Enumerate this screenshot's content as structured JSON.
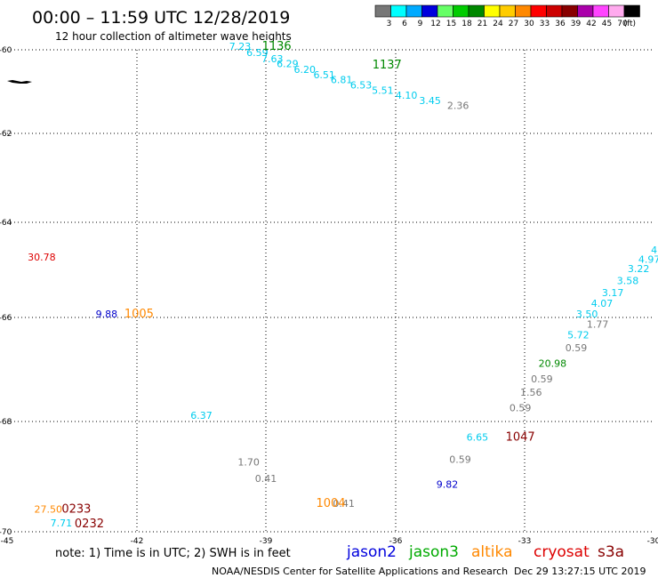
{
  "header": {
    "title": "00:00 – 11:59 UTC 12/28/2019",
    "subtitle": "12 hour collection of altimeter wave heights"
  },
  "legend": {
    "unit": "(ft)",
    "bins": [
      {
        "label": "3",
        "color": "#777777"
      },
      {
        "label": "6",
        "color": "#00ffff"
      },
      {
        "label": "9",
        "color": "#00aaff"
      },
      {
        "label": "12",
        "color": "#0000dd"
      },
      {
        "label": "15",
        "color": "#66ff66"
      },
      {
        "label": "18",
        "color": "#00cc00"
      },
      {
        "label": "21",
        "color": "#008800"
      },
      {
        "label": "24",
        "color": "#ffff00"
      },
      {
        "label": "27",
        "color": "#ffcc00"
      },
      {
        "label": "30",
        "color": "#ff8800"
      },
      {
        "label": "33",
        "color": "#ff0000"
      },
      {
        "label": "36",
        "color": "#cc0000"
      },
      {
        "label": "39",
        "color": "#880000"
      },
      {
        "label": "42",
        "color": "#aa00aa"
      },
      {
        "label": "45",
        "color": "#ff44ff"
      },
      {
        "label": "70",
        "color": "#ffaaee"
      },
      {
        "label": "",
        "color": "#000000"
      }
    ]
  },
  "axes": {
    "lon": [
      {
        "value": -45,
        "label": "-45"
      },
      {
        "value": -42,
        "label": "-42"
      },
      {
        "value": -39,
        "label": "-39"
      },
      {
        "value": -36,
        "label": "-36"
      },
      {
        "value": -33,
        "label": "-33"
      },
      {
        "value": -30,
        "label": "-30"
      }
    ],
    "lat": [
      {
        "value": -60,
        "label": "-60"
      },
      {
        "value": -62,
        "label": "-62"
      },
      {
        "value": -64,
        "label": "-64"
      },
      {
        "value": -66,
        "label": "-66"
      },
      {
        "value": -68,
        "label": "-68"
      },
      {
        "value": -70,
        "label": "-70"
      }
    ],
    "grid": "dotted"
  },
  "colors": {
    "grey": "#777777",
    "cyan": "#00ccee",
    "blue": "#0000cc",
    "red": "#dd0000",
    "darkred": "#880000",
    "green": "#008800",
    "orange": "#ff8800"
  },
  "observations": [
    {
      "text": "7.23",
      "lon": -39.6,
      "lat": -60.0,
      "color": "cyan"
    },
    {
      "text": "6.59",
      "lon": -39.2,
      "lat": -60.15,
      "color": "cyan"
    },
    {
      "text": "7.63",
      "lon": -38.85,
      "lat": -60.3,
      "color": "cyan"
    },
    {
      "text": "6.29",
      "lon": -38.5,
      "lat": -60.42,
      "color": "cyan"
    },
    {
      "text": "6.20",
      "lon": -38.1,
      "lat": -60.55,
      "color": "cyan"
    },
    {
      "text": "6.51",
      "lon": -37.65,
      "lat": -60.68,
      "color": "cyan"
    },
    {
      "text": "6.81",
      "lon": -37.25,
      "lat": -60.8,
      "color": "cyan"
    },
    {
      "text": "6.53",
      "lon": -36.8,
      "lat": -60.93,
      "color": "cyan"
    },
    {
      "text": "5.51",
      "lon": -36.3,
      "lat": -61.05,
      "color": "cyan"
    },
    {
      "text": "4.10",
      "lon": -35.75,
      "lat": -61.17,
      "color": "cyan"
    },
    {
      "text": "3.45",
      "lon": -35.2,
      "lat": -61.3,
      "color": "cyan"
    },
    {
      "text": "2.36",
      "lon": -34.55,
      "lat": -61.42,
      "color": "grey"
    },
    {
      "text": "30.78",
      "lon": -44.2,
      "lat": -64.8,
      "color": "red"
    },
    {
      "text": "9.88",
      "lon": -42.7,
      "lat": -66.0,
      "color": "blue"
    },
    {
      "text": "6.37",
      "lon": -40.5,
      "lat": -67.95,
      "color": "cyan"
    },
    {
      "text": "1.70",
      "lon": -39.4,
      "lat": -68.8,
      "color": "grey"
    },
    {
      "text": "0.41",
      "lon": -39.0,
      "lat": -69.1,
      "color": "grey"
    },
    {
      "text": "0.41",
      "lon": -37.2,
      "lat": -69.55,
      "color": "grey"
    },
    {
      "text": "27.50",
      "lon": -44.05,
      "lat": -69.65,
      "color": "orange"
    },
    {
      "text": "7.71",
      "lon": -43.75,
      "lat": -69.9,
      "color": "cyan"
    },
    {
      "text": "9.82",
      "lon": -34.8,
      "lat": -69.2,
      "color": "blue"
    },
    {
      "text": "0.59",
      "lon": -34.5,
      "lat": -68.75,
      "color": "grey"
    },
    {
      "text": "6.65",
      "lon": -34.1,
      "lat": -68.35,
      "color": "cyan"
    },
    {
      "text": "0.59",
      "lon": -33.1,
      "lat": -67.8,
      "color": "grey"
    },
    {
      "text": "1.56",
      "lon": -32.85,
      "lat": -67.5,
      "color": "grey"
    },
    {
      "text": "0.59",
      "lon": -32.6,
      "lat": -67.25,
      "color": "grey"
    },
    {
      "text": "20.98",
      "lon": -32.35,
      "lat": -66.95,
      "color": "green"
    },
    {
      "text": "0.59",
      "lon": -31.8,
      "lat": -66.65,
      "color": "grey"
    },
    {
      "text": "5.72",
      "lon": -31.75,
      "lat": -66.4,
      "color": "cyan"
    },
    {
      "text": "1.77",
      "lon": -31.3,
      "lat": -66.2,
      "color": "grey"
    },
    {
      "text": "3.50",
      "lon": -31.55,
      "lat": -66.0,
      "color": "cyan"
    },
    {
      "text": "4.07",
      "lon": -31.2,
      "lat": -65.78,
      "color": "cyan"
    },
    {
      "text": "3.17",
      "lon": -30.95,
      "lat": -65.55,
      "color": "cyan"
    },
    {
      "text": "3.58",
      "lon": -30.6,
      "lat": -65.3,
      "color": "cyan"
    },
    {
      "text": "3.22",
      "lon": -30.35,
      "lat": -65.05,
      "color": "cyan"
    },
    {
      "text": "4.97",
      "lon": -30.1,
      "lat": -64.85,
      "color": "cyan"
    },
    {
      "text": "4.",
      "lon": -29.95,
      "lat": -64.65,
      "color": "cyan"
    }
  ],
  "passes": [
    {
      "text": "1136",
      "lon": -38.75,
      "lat": -60.0,
      "color": "green"
    },
    {
      "text": "1137",
      "lon": -36.2,
      "lat": -60.45,
      "color": "green"
    },
    {
      "text": "1005",
      "lon": -41.95,
      "lat": -66.0,
      "color": "orange"
    },
    {
      "text": "1004",
      "lon": -37.5,
      "lat": -69.55,
      "color": "orange"
    },
    {
      "text": "1047",
      "lon": -33.1,
      "lat": -68.35,
      "color": "darkred"
    },
    {
      "text": "0233",
      "lon": -43.4,
      "lat": -69.65,
      "color": "darkred"
    },
    {
      "text": "0232",
      "lon": -43.1,
      "lat": -69.92,
      "color": "darkred"
    }
  ],
  "footer": {
    "note": "note: 1) Time is in UTC; 2) SWH is in feet",
    "satellites": [
      {
        "name": "jason2",
        "color": "#0000dd"
      },
      {
        "name": "jason3",
        "color": "#00aa00"
      },
      {
        "name": "altika",
        "color": "#ff8800"
      },
      {
        "name": "cryosat",
        "color": "#dd0000"
      },
      {
        "name": "s3a",
        "color": "#880000"
      }
    ],
    "credit": "NOAA/NESDIS Center for Satellite Applications and Research",
    "timestamp": "Dec 29 13:27:15 UTC 2019"
  }
}
